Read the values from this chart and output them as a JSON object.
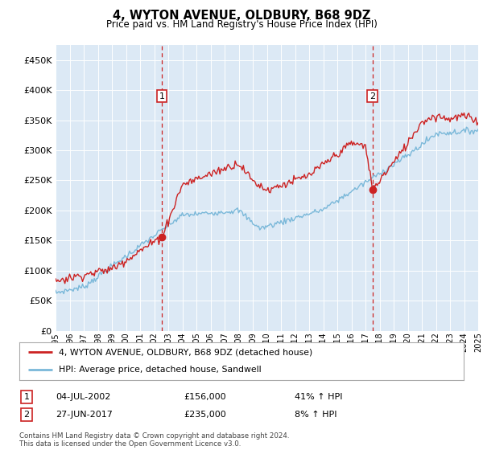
{
  "title": "4, WYTON AVENUE, OLDBURY, B68 9DZ",
  "subtitle": "Price paid vs. HM Land Registry's House Price Index (HPI)",
  "plot_bg_color": "#dce9f5",
  "ylim": [
    0,
    475000
  ],
  "yticks": [
    0,
    50000,
    100000,
    150000,
    200000,
    250000,
    300000,
    350000,
    400000,
    450000
  ],
  "sale1_date": 2002.55,
  "sale1_price": 156000,
  "sale2_date": 2017.5,
  "sale2_price": 235000,
  "hpi_color": "#7ab8d9",
  "price_color": "#cc2222",
  "dashed_line_color": "#cc2222",
  "legend_label_price": "4, WYTON AVENUE, OLDBURY, B68 9DZ (detached house)",
  "legend_label_hpi": "HPI: Average price, detached house, Sandwell",
  "table_row1": [
    "1",
    "04-JUL-2002",
    "£156,000",
    "41% ↑ HPI"
  ],
  "table_row2": [
    "2",
    "27-JUN-2017",
    "£235,000",
    "8% ↑ HPI"
  ],
  "footnote": "Contains HM Land Registry data © Crown copyright and database right 2024.\nThis data is licensed under the Open Government Licence v3.0.",
  "xstart": 1995,
  "xend": 2025
}
